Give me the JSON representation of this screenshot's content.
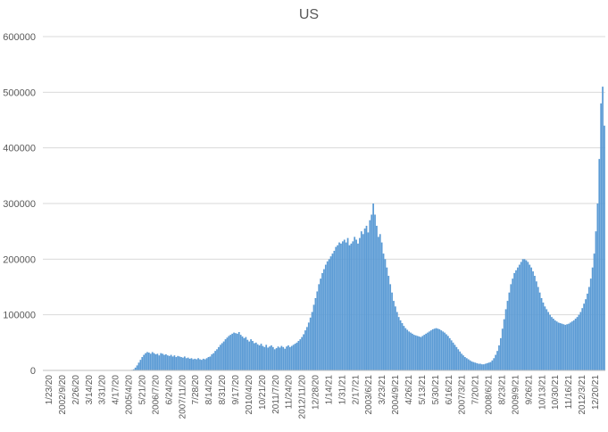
{
  "chart_data": {
    "type": "bar",
    "title": "US",
    "xlabel": "",
    "ylabel": "",
    "ylim": [
      0,
      600000
    ],
    "yticks": [
      0,
      100000,
      200000,
      300000,
      400000,
      500000,
      600000
    ],
    "ytick_labels": [
      "0",
      "100000",
      "200000",
      "300000",
      "400000",
      "500000",
      "600000"
    ],
    "x_tick_labels": [
      "1/23/20",
      "2002/9/20",
      "2/26/20",
      "3/14/20",
      "3/31/20",
      "4/17/20",
      "2005/4/20",
      "5/21/20",
      "2006/7/20",
      "6/24/20",
      "2007/11/20",
      "7/28/20",
      "8/14/20",
      "8/31/20",
      "9/17/20",
      "2010/4/20",
      "10/21/20",
      "2011/7/20",
      "11/24/20",
      "2012/11/20",
      "12/28/20",
      "1/14/21",
      "1/31/21",
      "2/17/21",
      "2003/6/21",
      "3/23/21",
      "2004/9/21",
      "4/26/21",
      "5/13/21",
      "5/30/21",
      "6/16/21",
      "2007/3/21",
      "7/20/21",
      "2008/6/21",
      "8/23/21",
      "2009/9/21",
      "9/26/21",
      "10/13/21",
      "10/30/21",
      "11/16/21",
      "2012/3/21",
      "12/20/21"
    ],
    "grid": true,
    "legend": "none",
    "bar_color": "#5b9bd5",
    "series": [
      {
        "values": [
          0,
          0,
          0,
          0,
          0,
          0,
          0,
          0,
          0,
          0,
          0,
          0,
          0,
          0,
          0,
          0,
          0,
          0,
          0,
          0,
          0,
          0,
          0,
          0,
          0,
          0,
          0,
          0,
          0,
          0,
          0,
          0,
          0,
          0,
          0,
          0,
          0,
          0,
          0,
          0,
          0,
          0,
          0,
          0,
          0,
          0,
          0,
          0,
          0,
          0,
          0,
          0,
          1000,
          2000,
          5000,
          9000,
          14000,
          19000,
          24000,
          28000,
          31000,
          33000,
          32000,
          30000,
          33000,
          31000,
          29000,
          30000,
          27000,
          31000,
          30000,
          28000,
          29000,
          27000,
          26000,
          28000,
          25000,
          27000,
          24000,
          26000,
          25000,
          24000,
          23000,
          25000,
          22000,
          23000,
          21000,
          22000,
          20000,
          21000,
          20000,
          22000,
          20000,
          19000,
          21000,
          20000,
          22000,
          24000,
          25000,
          29000,
          31000,
          35000,
          38000,
          42000,
          46000,
          49000,
          52000,
          56000,
          59000,
          62000,
          64000,
          66000,
          68000,
          67000,
          66000,
          69000,
          64000,
          61000,
          58000,
          60000,
          55000,
          52000,
          56000,
          53000,
          49000,
          50000,
          47000,
          45000,
          48000,
          44000,
          42000,
          46000,
          41000,
          43000,
          45000,
          42000,
          38000,
          40000,
          43000,
          41000,
          44000,
          42000,
          39000,
          43000,
          45000,
          42000,
          44000,
          46000,
          48000,
          50000,
          53000,
          56000,
          60000,
          65000,
          72000,
          78000,
          86000,
          95000,
          105000,
          118000,
          130000,
          142000,
          155000,
          165000,
          175000,
          182000,
          190000,
          196000,
          200000,
          205000,
          210000,
          215000,
          222000,
          225000,
          230000,
          228000,
          232000,
          235000,
          230000,
          238000,
          225000,
          228000,
          232000,
          240000,
          235000,
          228000,
          238000,
          250000,
          245000,
          255000,
          260000,
          248000,
          270000,
          280000,
          300000,
          280000,
          260000,
          240000,
          245000,
          230000,
          210000,
          200000,
          185000,
          170000,
          155000,
          140000,
          125000,
          115000,
          105000,
          96000,
          90000,
          85000,
          80000,
          76000,
          73000,
          70000,
          68000,
          66000,
          64000,
          63000,
          62000,
          61000,
          60000,
          62000,
          64000,
          66000,
          68000,
          70000,
          72000,
          74000,
          75000,
          76000,
          75000,
          74000,
          72000,
          70000,
          68000,
          65000,
          62000,
          58000,
          54000,
          50000,
          46000,
          42000,
          38000,
          34000,
          30000,
          27000,
          24000,
          22000,
          20000,
          18000,
          16000,
          15000,
          14000,
          13000,
          12000,
          12000,
          11000,
          11000,
          12000,
          13000,
          14000,
          15000,
          18000,
          22000,
          28000,
          35000,
          45000,
          58000,
          75000,
          92000,
          110000,
          125000,
          140000,
          155000,
          165000,
          175000,
          180000,
          185000,
          190000,
          195000,
          200000,
          200000,
          198000,
          195000,
          190000,
          185000,
          178000,
          170000,
          160000,
          150000,
          140000,
          130000,
          122000,
          115000,
          110000,
          105000,
          100000,
          96000,
          93000,
          90000,
          88000,
          86000,
          85000,
          84000,
          83000,
          82000,
          83000,
          84000,
          86000,
          88000,
          90000,
          93000,
          96000,
          100000,
          105000,
          112000,
          120000,
          128000,
          138000,
          150000,
          165000,
          185000,
          210000,
          250000,
          300000,
          380000,
          480000,
          510000,
          440000
        ]
      }
    ]
  }
}
